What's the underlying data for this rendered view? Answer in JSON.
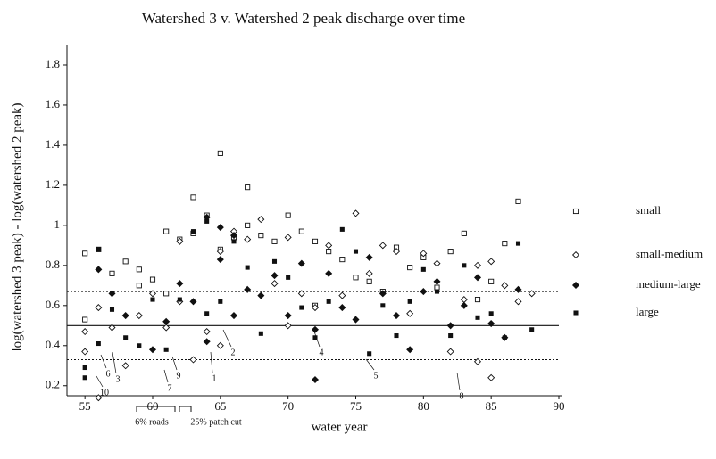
{
  "chart_data": {
    "type": "scatter",
    "title": "Watershed 3 v. Watershed 2 peak discharge over time",
    "x_label": "water year",
    "y_label": "log(watershed 3 peak) - log(watershed 2 peak)",
    "xlim": [
      54,
      90
    ],
    "ylim": [
      0.15,
      1.9
    ],
    "xticks": [
      55,
      60,
      65,
      70,
      75,
      80,
      85,
      90
    ],
    "yticks": [
      0.2,
      0.4,
      0.6,
      0.8,
      {
        "value": 1,
        "label": "1"
      },
      1.2,
      1.4,
      1.6,
      1.8
    ],
    "reference_lines": [
      {
        "value": 0.5,
        "style": "solid"
      },
      {
        "value": 0.67,
        "style": "dotted"
      },
      {
        "value": 0.33,
        "style": "dotted"
      }
    ],
    "legend_position": "right",
    "series": [
      {
        "name": "small",
        "color": "#111111",
        "marker": "square",
        "filled": false,
        "x": [
          55,
          55,
          56,
          57,
          58,
          59,
          59,
          60,
          61,
          61,
          62,
          63,
          63,
          64,
          65,
          65,
          66,
          67,
          67,
          68,
          69,
          70,
          71,
          72,
          72,
          73,
          74,
          75,
          76,
          77,
          78,
          79,
          80,
          81,
          82,
          83,
          84,
          85,
          86,
          87
        ],
        "values": [
          0.86,
          0.53,
          0.88,
          0.76,
          0.82,
          0.78,
          0.7,
          0.73,
          0.97,
          0.66,
          0.93,
          1.14,
          0.96,
          1.05,
          1.36,
          0.88,
          0.94,
          1.19,
          1.0,
          0.95,
          0.92,
          1.05,
          0.97,
          0.92,
          0.6,
          0.87,
          0.83,
          0.74,
          0.72,
          0.67,
          0.89,
          0.79,
          0.84,
          0.69,
          0.87,
          0.96,
          0.63,
          0.72,
          0.91,
          1.12
        ]
      },
      {
        "name": "small-medium",
        "color": "#111111",
        "marker": "diamond",
        "filled": false,
        "x": [
          55,
          55,
          56,
          56,
          57,
          58,
          59,
          60,
          61,
          62,
          62,
          63,
          64,
          65,
          65,
          66,
          67,
          68,
          69,
          70,
          70,
          71,
          72,
          73,
          74,
          75,
          76,
          77,
          78,
          79,
          80,
          81,
          82,
          83,
          84,
          84,
          85,
          85,
          86,
          87,
          88
        ],
        "values": [
          0.47,
          0.37,
          0.14,
          0.59,
          0.49,
          0.3,
          0.55,
          0.66,
          0.49,
          0.92,
          0.62,
          0.33,
          0.47,
          0.4,
          0.87,
          0.97,
          0.93,
          1.03,
          0.71,
          0.94,
          0.5,
          0.66,
          0.59,
          0.9,
          0.65,
          1.06,
          0.76,
          0.9,
          0.87,
          0.56,
          0.86,
          0.81,
          0.37,
          0.63,
          0.8,
          0.32,
          0.24,
          0.82,
          0.7,
          0.62,
          0.66
        ]
      },
      {
        "name": "medium-large",
        "color": "#111111",
        "marker": "diamond",
        "filled": true,
        "x": [
          56,
          57,
          58,
          60,
          61,
          62,
          63,
          64,
          64,
          65,
          65,
          66,
          66,
          67,
          68,
          69,
          70,
          71,
          72,
          72,
          73,
          74,
          75,
          76,
          77,
          78,
          79,
          80,
          81,
          82,
          83,
          84,
          85,
          86,
          87
        ],
        "values": [
          0.78,
          0.66,
          0.55,
          0.38,
          0.52,
          0.71,
          0.62,
          1.04,
          0.42,
          0.99,
          0.83,
          0.95,
          0.55,
          0.68,
          0.65,
          0.75,
          0.55,
          0.81,
          0.48,
          0.23,
          0.76,
          0.59,
          0.53,
          0.84,
          0.66,
          0.55,
          0.38,
          0.67,
          0.72,
          0.5,
          0.6,
          0.74,
          0.51,
          0.44,
          0.68
        ]
      },
      {
        "name": "large",
        "color": "#111111",
        "marker": "square",
        "filled": true,
        "x": [
          55,
          55,
          56,
          56,
          57,
          58,
          59,
          60,
          61,
          62,
          63,
          64,
          64,
          65,
          66,
          67,
          68,
          69,
          70,
          71,
          72,
          73,
          74,
          75,
          76,
          77,
          78,
          79,
          80,
          81,
          82,
          83,
          84,
          85,
          86,
          87,
          88
        ],
        "values": [
          0.24,
          0.29,
          0.88,
          0.41,
          0.58,
          0.44,
          0.4,
          0.63,
          0.38,
          0.63,
          0.97,
          0.56,
          1.02,
          0.62,
          0.92,
          0.79,
          0.46,
          0.82,
          0.74,
          0.59,
          0.44,
          0.62,
          0.98,
          0.87,
          0.36,
          0.6,
          0.45,
          0.62,
          0.78,
          0.67,
          0.45,
          0.8,
          0.54,
          0.56,
          0.44,
          0.91,
          0.48
        ]
      }
    ],
    "annotations": [
      "1",
      "2",
      "3",
      "4",
      "5",
      "6",
      "7",
      "8",
      "9",
      "10",
      "6% roads",
      "25% patch cut"
    ]
  }
}
